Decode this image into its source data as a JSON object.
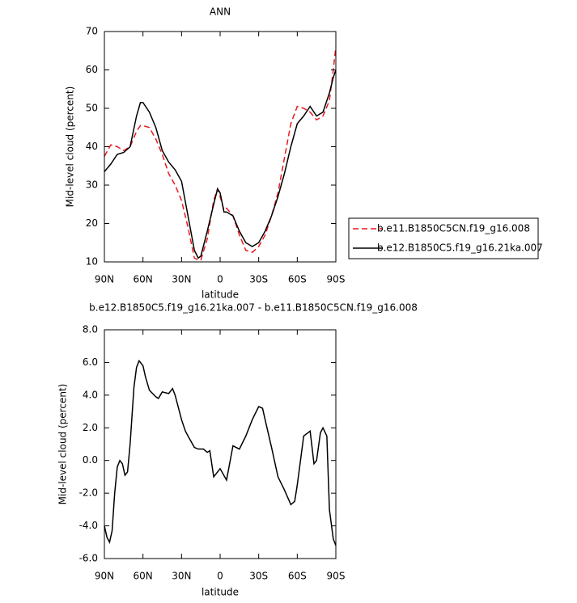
{
  "chart_data": [
    {
      "type": "line",
      "title": "ANN",
      "x_label": "latitude",
      "y_label": "Mid-level cloud (percent)",
      "x": [
        90,
        85,
        80,
        75,
        70,
        65,
        62,
        60,
        55,
        50,
        45,
        40,
        35,
        30,
        25,
        20,
        17,
        15,
        10,
        5,
        2,
        0,
        -3,
        -5,
        -10,
        -15,
        -20,
        -25,
        -30,
        -35,
        -40,
        -45,
        -50,
        -55,
        -60,
        -65,
        -70,
        -75,
        -80,
        -85,
        -88,
        -90
      ],
      "series": [
        {
          "name": "b.e11.B1850C5CN.f19_g16.008",
          "color": "#e8191e",
          "dashed": true,
          "values": [
            37.5,
            40.5,
            40,
            39,
            40,
            44,
            45.5,
            45.5,
            45,
            42,
            38,
            33,
            30,
            26,
            19,
            11,
            10.5,
            10.5,
            16,
            26,
            29,
            27,
            23.5,
            24,
            22,
            17,
            13,
            12.5,
            14,
            17,
            22,
            28,
            37,
            46,
            50.5,
            50,
            49,
            47,
            48,
            52,
            60,
            66
          ]
        },
        {
          "name": "b.e12.B1850C5.f19_g16.21ka.007",
          "color": "#000000",
          "dashed": false,
          "values": [
            33.5,
            35.5,
            38,
            38.5,
            40,
            48,
            51.5,
            51.5,
            49,
            45,
            39,
            36,
            34,
            31,
            22,
            13,
            11,
            11.5,
            18,
            25,
            29,
            28,
            23,
            23,
            22,
            18,
            15,
            14,
            15,
            18,
            22,
            27,
            33,
            40,
            46,
            48,
            50.5,
            48,
            49,
            54,
            58,
            60
          ]
        }
      ],
      "xlim": [
        90,
        -90
      ],
      "xticks": [
        {
          "value": 90,
          "label": "90N"
        },
        {
          "value": 60,
          "label": "60N"
        },
        {
          "value": 30,
          "label": "30N"
        },
        0,
        {
          "value": -30,
          "label": "30S"
        },
        {
          "value": -60,
          "label": "60S"
        },
        {
          "value": -90,
          "label": "90S"
        }
      ],
      "ylim": [
        10,
        70
      ],
      "yticks": [
        10,
        20,
        30,
        40,
        50,
        60,
        70
      ]
    },
    {
      "type": "line",
      "title": "b.e12.B1850C5.f19_g16.21ka.007 - b.e11.B1850C5CN.f19_g16.008",
      "x_label": "latitude",
      "y_label": "Mid-level cloud (percent)",
      "x": [
        90,
        88,
        86,
        84,
        82,
        80,
        78,
        76,
        74,
        72,
        70,
        67,
        65,
        63,
        60,
        58,
        55,
        50,
        48,
        45,
        40,
        37,
        35,
        30,
        27,
        25,
        20,
        17,
        13,
        10,
        8,
        5,
        0,
        -5,
        -10,
        -15,
        -20,
        -25,
        -30,
        -33,
        -35,
        -40,
        -45,
        -50,
        -55,
        -58,
        -60,
        -65,
        -70,
        -73,
        -75,
        -78,
        -80,
        -83,
        -85,
        -88,
        -90
      ],
      "values": [
        -4,
        -4.7,
        -5,
        -4.3,
        -2,
        -0.4,
        0,
        -0.2,
        -0.9,
        -0.7,
        1,
        4.5,
        5.7,
        6.1,
        5.8,
        5.1,
        4.3,
        3.9,
        3.8,
        4.2,
        4.1,
        4.4,
        4.0,
        2.5,
        1.8,
        1.5,
        0.8,
        0.7,
        0.7,
        0.5,
        0.6,
        -1.0,
        -0.5,
        -1.2,
        0.9,
        0.7,
        1.5,
        2.5,
        3.3,
        3.2,
        2.5,
        0.8,
        -1.0,
        -1.8,
        -2.7,
        -2.5,
        -1.5,
        1.5,
        1.8,
        -0.2,
        0,
        1.7,
        2.0,
        1.5,
        -3,
        -4.8,
        -5.2
      ],
      "color": "#000000",
      "xlim": [
        90,
        -90
      ],
      "xticks": [
        {
          "value": 90,
          "label": "90N"
        },
        {
          "value": 60,
          "label": "60N"
        },
        {
          "value": 30,
          "label": "30N"
        },
        0,
        {
          "value": -30,
          "label": "30S"
        },
        {
          "value": -60,
          "label": "60S"
        },
        {
          "value": -90,
          "label": "90S"
        }
      ],
      "ylim": [
        -6,
        8
      ],
      "yticks": [
        {
          "value": -6,
          "label": "-6.0"
        },
        {
          "value": -4,
          "label": "-4.0"
        },
        {
          "value": -2,
          "label": "-2.0"
        },
        {
          "value": 0,
          "label": "0.0"
        },
        {
          "value": 2,
          "label": "2.0"
        },
        {
          "value": 4,
          "label": "4.0"
        },
        {
          "value": 6,
          "label": "6.0"
        },
        {
          "value": 8,
          "label": "8.0"
        }
      ]
    }
  ]
}
